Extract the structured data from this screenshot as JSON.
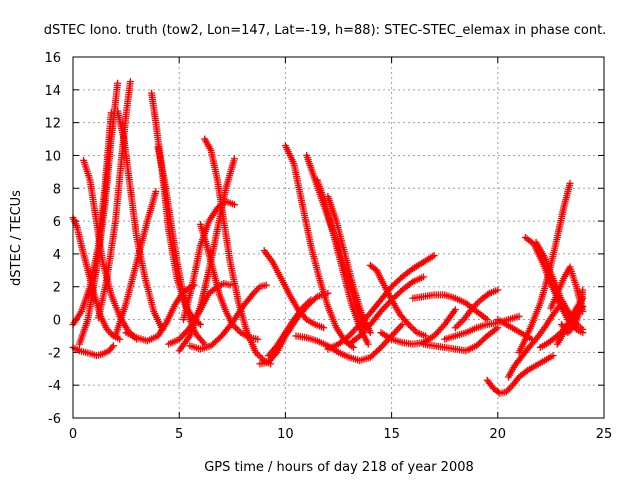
{
  "chart_data": {
    "type": "scatter",
    "title": "dSTEC Iono. truth (tow2, Lon=147, Lat=-19, h=88): STEC-STEC_elemax in phase cont.",
    "xlabel": "GPS time / hours of day 218 of year 2008",
    "ylabel": "dSTEC  / TECUs",
    "xlim": [
      0,
      25
    ],
    "ylim": [
      -6,
      16
    ],
    "xticks": [
      0,
      5,
      10,
      15,
      20,
      25
    ],
    "yticks": [
      -6,
      -4,
      -2,
      0,
      2,
      4,
      6,
      8,
      10,
      12,
      14,
      16
    ],
    "grid": true,
    "marker": "plus",
    "color": "#ff0000",
    "series": [
      {
        "x": [
          0.0,
          0.3,
          0.6,
          0.9,
          1.1,
          1.4,
          1.7,
          1.9
        ],
        "y": [
          -1.7,
          -1.9,
          -2.0,
          -2.1,
          -2.2,
          -2.1,
          -1.9,
          -1.6
        ]
      },
      {
        "x": [
          0.0,
          0.2,
          0.4,
          0.7,
          1.0,
          1.3,
          1.6,
          1.9,
          2.2
        ],
        "y": [
          6.2,
          5.6,
          4.5,
          3.0,
          1.5,
          0.2,
          -0.6,
          -1.0,
          -1.2
        ]
      },
      {
        "x": [
          0.0,
          0.4,
          0.8,
          1.2,
          1.5,
          1.8
        ],
        "y": [
          -0.3,
          0.5,
          2.0,
          4.5,
          8.0,
          12.6
        ]
      },
      {
        "x": [
          0.5,
          0.8,
          1.1,
          1.4,
          1.8,
          2.2,
          2.6,
          3.0
        ],
        "y": [
          9.7,
          8.5,
          6.0,
          3.5,
          1.5,
          0.2,
          -0.7,
          -1.2
        ]
      },
      {
        "x": [
          0.3,
          0.7,
          1.1,
          1.5,
          1.8,
          2.1
        ],
        "y": [
          -1.5,
          0.0,
          3.0,
          7.0,
          11.0,
          14.4
        ]
      },
      {
        "x": [
          1.2,
          1.6,
          2.0,
          2.3,
          2.5,
          2.7
        ],
        "y": [
          0.1,
          2.5,
          6.0,
          10.0,
          12.5,
          14.5
        ]
      },
      {
        "x": [
          2.1,
          2.4,
          2.7,
          3.0,
          3.4,
          3.8,
          4.2
        ],
        "y": [
          12.7,
          11.0,
          8.0,
          5.0,
          2.5,
          0.5,
          -0.6
        ]
      },
      {
        "x": [
          3.7,
          3.9,
          4.2,
          4.5,
          4.9,
          5.3,
          5.7,
          6.0
        ],
        "y": [
          13.8,
          12.0,
          9.0,
          5.5,
          2.5,
          0.8,
          0.0,
          -0.3
        ]
      },
      {
        "x": [
          4.0,
          4.3,
          4.6,
          4.9,
          5.2,
          5.5,
          5.8,
          6.2
        ],
        "y": [
          10.5,
          8.5,
          6.0,
          3.5,
          1.5,
          0.0,
          -0.9,
          -1.5
        ]
      },
      {
        "x": [
          2.0,
          2.5,
          3.0,
          3.5,
          3.9
        ],
        "y": [
          -1.0,
          1.0,
          3.5,
          6.0,
          7.8
        ]
      },
      {
        "x": [
          2.5,
          3.0,
          3.5,
          4.0,
          4.4,
          4.8,
          5.2,
          5.7
        ],
        "y": [
          -0.8,
          -1.1,
          -1.3,
          -1.0,
          -0.2,
          0.9,
          1.7,
          2.1
        ]
      },
      {
        "x": [
          4.5,
          5.0,
          5.5,
          6.0,
          6.4,
          6.8,
          7.1,
          7.4
        ],
        "y": [
          -1.5,
          -1.2,
          -0.5,
          0.6,
          1.6,
          2.0,
          2.2,
          2.1
        ]
      },
      {
        "x": [
          5.5,
          6.0,
          6.5,
          7.0,
          7.5,
          8.0,
          8.5,
          8.8,
          9.1
        ],
        "y": [
          -1.6,
          -1.8,
          -1.6,
          -1.0,
          -0.2,
          0.8,
          1.6,
          2.0,
          2.1
        ]
      },
      {
        "x": [
          5.0,
          5.5,
          6.0,
          6.4,
          6.8,
          7.2,
          7.6
        ],
        "y": [
          -1.9,
          -1.0,
          0.8,
          3.0,
          5.5,
          8.0,
          9.8
        ]
      },
      {
        "x": [
          6.2,
          6.5,
          6.8,
          7.1,
          7.4,
          7.8,
          8.2,
          8.6,
          9.0,
          9.3
        ],
        "y": [
          11.0,
          10.3,
          8.5,
          6.0,
          3.5,
          1.0,
          -0.8,
          -2.0,
          -2.5,
          -2.7
        ]
      },
      {
        "x": [
          5.2,
          5.6,
          6.0,
          6.4,
          6.8,
          7.2,
          7.6
        ],
        "y": [
          0.0,
          2.0,
          4.5,
          6.0,
          6.8,
          7.2,
          7.0
        ]
      },
      {
        "x": [
          6.0,
          6.3,
          6.6,
          6.9,
          7.2,
          7.5,
          7.9,
          8.3,
          8.7
        ],
        "y": [
          5.8,
          4.5,
          3.0,
          1.5,
          0.5,
          -0.3,
          -0.8,
          -1.1,
          -1.2
        ]
      },
      {
        "x": [
          8.8,
          9.2,
          9.6,
          10.0,
          10.5,
          11.0,
          11.5,
          12.0
        ],
        "y": [
          -2.7,
          -2.6,
          -2.0,
          -1.0,
          0.0,
          0.8,
          1.4,
          1.6
        ]
      },
      {
        "x": [
          9.2,
          9.6,
          10.0,
          10.4,
          10.8,
          11.2
        ],
        "y": [
          -2.2,
          -1.6,
          -0.8,
          0.0,
          0.7,
          1.2
        ]
      },
      {
        "x": [
          9.0,
          9.4,
          9.8,
          10.2,
          10.6,
          11.0,
          11.4,
          11.8
        ],
        "y": [
          4.2,
          3.5,
          2.5,
          1.5,
          0.6,
          0.0,
          -0.3,
          -0.5
        ]
      },
      {
        "x": [
          10.0,
          10.4,
          10.8,
          11.2,
          11.6,
          12.0,
          12.4,
          12.8,
          13.2
        ],
        "y": [
          10.6,
          9.5,
          7.0,
          4.5,
          2.5,
          0.8,
          -0.5,
          -1.3,
          -1.7
        ]
      },
      {
        "x": [
          11.0,
          11.4,
          11.8,
          12.2,
          12.6,
          13.0,
          13.4,
          13.7
        ],
        "y": [
          10.0,
          8.5,
          7.0,
          5.5,
          4.0,
          2.2,
          0.5,
          -0.5
        ]
      },
      {
        "x": [
          11.5,
          11.9,
          12.3,
          12.7,
          13.1,
          13.5,
          13.9
        ],
        "y": [
          8.5,
          7.0,
          5.0,
          3.0,
          1.0,
          -0.5,
          -1.5
        ]
      },
      {
        "x": [
          12.0,
          12.4,
          12.8,
          13.2,
          13.6,
          14.0
        ],
        "y": [
          7.5,
          6.0,
          4.0,
          2.0,
          0.3,
          -0.8
        ]
      },
      {
        "x": [
          10.5,
          11.0,
          11.5,
          12.0,
          12.5,
          13.0,
          13.5,
          14.0,
          14.5,
          15.0,
          15.5
        ],
        "y": [
          -1.0,
          -1.1,
          -1.3,
          -1.6,
          -2.0,
          -2.3,
          -2.5,
          -2.3,
          -1.7,
          -1.0,
          -0.3
        ]
      },
      {
        "x": [
          12.0,
          12.5,
          13.0,
          13.5,
          14.0,
          14.5,
          15.0,
          15.5,
          16.0,
          16.5,
          17.0
        ],
        "y": [
          -1.8,
          -1.5,
          -1.0,
          -0.3,
          0.4,
          1.2,
          2.0,
          2.6,
          3.1,
          3.5,
          3.9
        ]
      },
      {
        "x": [
          13.0,
          13.5,
          14.0,
          14.5,
          15.0,
          15.5,
          16.0,
          16.5
        ],
        "y": [
          -1.5,
          -1.0,
          -0.3,
          0.5,
          1.2,
          1.8,
          2.3,
          2.6
        ]
      },
      {
        "x": [
          14.0,
          14.3,
          14.6,
          15.0,
          15.4,
          15.8,
          16.2,
          16.6
        ],
        "y": [
          3.3,
          3.0,
          2.2,
          1.2,
          0.3,
          -0.3,
          -0.8,
          -1.0
        ]
      },
      {
        "x": [
          14.5,
          15.0,
          15.5,
          16.0,
          16.5,
          17.0,
          17.5,
          18.0
        ],
        "y": [
          -0.8,
          -1.2,
          -1.4,
          -1.5,
          -1.4,
          -1.0,
          -0.3,
          0.6
        ]
      },
      {
        "x": [
          16.0,
          16.5,
          17.0,
          17.5,
          18.0,
          18.5,
          19.0,
          19.5
        ],
        "y": [
          1.3,
          1.4,
          1.5,
          1.5,
          1.3,
          1.0,
          0.5,
          0.0
        ]
      },
      {
        "x": [
          16.5,
          17.0,
          17.5,
          18.0,
          18.5,
          19.0,
          19.5,
          20.0
        ],
        "y": [
          -1.5,
          -1.6,
          -1.7,
          -1.8,
          -1.9,
          -1.6,
          -1.0,
          -0.5
        ]
      },
      {
        "x": [
          17.5,
          18.0,
          18.5,
          19.0,
          19.5,
          20.0,
          20.5,
          21.0
        ],
        "y": [
          -1.2,
          -1.0,
          -0.8,
          -0.5,
          -0.3,
          -0.2,
          0.0,
          0.2
        ]
      },
      {
        "x": [
          18.0,
          18.4,
          18.8,
          19.2,
          19.6,
          20.0
        ],
        "y": [
          -0.5,
          0.0,
          0.7,
          1.2,
          1.6,
          1.8
        ]
      },
      {
        "x": [
          19.5,
          19.8,
          20.1,
          20.4,
          20.7,
          21.0,
          21.4,
          21.8,
          22.2,
          22.6
        ],
        "y": [
          -3.7,
          -4.2,
          -4.5,
          -4.4,
          -4.0,
          -3.5,
          -3.1,
          -2.8,
          -2.5,
          -2.2
        ]
      },
      {
        "x": [
          20.5,
          20.8,
          21.1,
          21.4,
          21.8,
          22.2,
          22.6,
          23.0
        ],
        "y": [
          -3.5,
          -2.8,
          -2.3,
          -1.8,
          -1.2,
          -0.5,
          0.3,
          1.0
        ]
      },
      {
        "x": [
          21.0,
          21.3,
          21.6,
          22.0,
          22.4,
          22.8,
          23.1,
          23.4
        ],
        "y": [
          -2.0,
          -1.2,
          -0.3,
          1.0,
          2.8,
          5.0,
          6.8,
          8.3
        ]
      },
      {
        "x": [
          21.3,
          21.7,
          22.1,
          22.5,
          22.9,
          23.3,
          23.7,
          24.0
        ],
        "y": [
          5.0,
          4.6,
          3.5,
          2.2,
          1.0,
          0.0,
          -0.6,
          -0.8
        ]
      },
      {
        "x": [
          21.8,
          22.2,
          22.6,
          23.0,
          23.4,
          23.8,
          24.0
        ],
        "y": [
          4.7,
          3.8,
          2.5,
          1.2,
          0.3,
          -0.4,
          -0.6
        ]
      },
      {
        "x": [
          22.0,
          22.4,
          22.8,
          23.2,
          23.6,
          24.0
        ],
        "y": [
          -1.7,
          -1.4,
          -1.0,
          -0.5,
          0.2,
          0.8
        ]
      },
      {
        "x": [
          22.5,
          22.8,
          23.1,
          23.4,
          23.7,
          24.0
        ],
        "y": [
          0.7,
          1.6,
          2.5,
          3.2,
          2.0,
          0.5
        ]
      },
      {
        "x": [
          22.8,
          23.1,
          23.4,
          23.7,
          24.0
        ],
        "y": [
          -1.5,
          -0.8,
          0.0,
          0.7,
          1.3
        ]
      },
      {
        "x": [
          23.0,
          23.3,
          23.6,
          23.9,
          24.0
        ],
        "y": [
          -0.3,
          -0.8,
          -0.4,
          0.6,
          1.8
        ]
      },
      {
        "x": [
          20.0,
          20.4,
          20.8,
          21.2,
          21.6
        ],
        "y": [
          0.0,
          -0.3,
          -0.6,
          -0.9,
          -1.2
        ]
      }
    ]
  }
}
